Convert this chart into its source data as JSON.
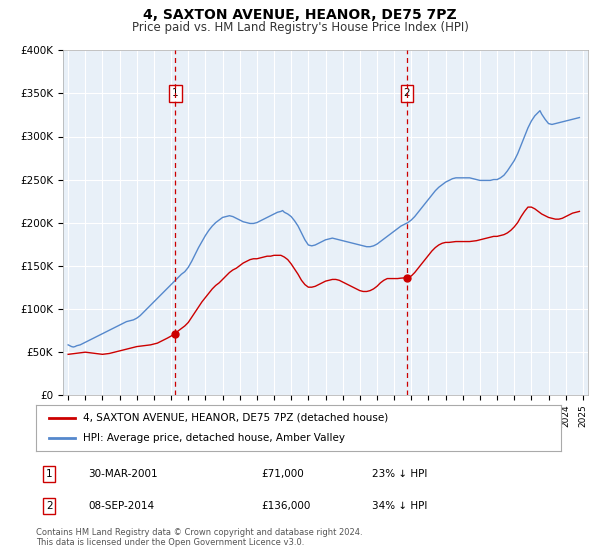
{
  "title": "4, SAXTON AVENUE, HEANOR, DE75 7PZ",
  "subtitle": "Price paid vs. HM Land Registry's House Price Index (HPI)",
  "title_fontsize": 10,
  "subtitle_fontsize": 8.5,
  "ylim": [
    0,
    400000
  ],
  "yticks": [
    0,
    50000,
    100000,
    150000,
    200000,
    250000,
    300000,
    350000,
    400000
  ],
  "ytick_labels": [
    "£0",
    "£50K",
    "£100K",
    "£150K",
    "£200K",
    "£250K",
    "£300K",
    "£350K",
    "£400K"
  ],
  "xlim_start": 1994.7,
  "xlim_end": 2025.3,
  "background_color": "#ffffff",
  "plot_bg": "#e8f0f8",
  "grid_color": "#ffffff",
  "red_line_color": "#cc0000",
  "blue_line_color": "#5588cc",
  "marker1_x": 2001.25,
  "marker2_x": 2014.75,
  "marker1_label": "1",
  "marker2_label": "2",
  "legend_line1": "4, SAXTON AVENUE, HEANOR, DE75 7PZ (detached house)",
  "legend_line2": "HPI: Average price, detached house, Amber Valley",
  "table_row1": [
    "1",
    "30-MAR-2001",
    "£71,000",
    "23% ↓ HPI"
  ],
  "table_row2": [
    "2",
    "08-SEP-2014",
    "£136,000",
    "34% ↓ HPI"
  ],
  "footnote1": "Contains HM Land Registry data © Crown copyright and database right 2024.",
  "footnote2": "This data is licensed under the Open Government Licence v3.0.",
  "hpi_years": [
    1995.0,
    1995.1,
    1995.2,
    1995.3,
    1995.4,
    1995.5,
    1995.6,
    1995.7,
    1995.8,
    1995.9,
    1996.0,
    1996.1,
    1996.2,
    1996.3,
    1996.4,
    1996.5,
    1996.6,
    1996.7,
    1996.8,
    1996.9,
    1997.0,
    1997.2,
    1997.4,
    1997.6,
    1997.8,
    1998.0,
    1998.2,
    1998.4,
    1998.6,
    1998.8,
    1999.0,
    1999.2,
    1999.4,
    1999.6,
    1999.8,
    2000.0,
    2000.2,
    2000.4,
    2000.6,
    2000.8,
    2001.0,
    2001.2,
    2001.4,
    2001.6,
    2001.8,
    2002.0,
    2002.2,
    2002.4,
    2002.6,
    2002.8,
    2003.0,
    2003.2,
    2003.4,
    2003.6,
    2003.8,
    2004.0,
    2004.2,
    2004.4,
    2004.6,
    2004.8,
    2005.0,
    2005.2,
    2005.4,
    2005.6,
    2005.8,
    2006.0,
    2006.2,
    2006.4,
    2006.6,
    2006.8,
    2007.0,
    2007.2,
    2007.4,
    2007.5,
    2007.6,
    2007.8,
    2008.0,
    2008.2,
    2008.4,
    2008.6,
    2008.8,
    2009.0,
    2009.2,
    2009.4,
    2009.6,
    2009.8,
    2010.0,
    2010.2,
    2010.4,
    2010.6,
    2010.8,
    2011.0,
    2011.2,
    2011.4,
    2011.6,
    2011.8,
    2012.0,
    2012.2,
    2012.4,
    2012.6,
    2012.8,
    2013.0,
    2013.2,
    2013.4,
    2013.6,
    2013.8,
    2014.0,
    2014.2,
    2014.4,
    2014.6,
    2014.8,
    2015.0,
    2015.2,
    2015.4,
    2015.6,
    2015.8,
    2016.0,
    2016.2,
    2016.4,
    2016.6,
    2016.8,
    2017.0,
    2017.2,
    2017.4,
    2017.6,
    2017.8,
    2018.0,
    2018.2,
    2018.4,
    2018.6,
    2018.8,
    2019.0,
    2019.2,
    2019.4,
    2019.6,
    2019.8,
    2020.0,
    2020.2,
    2020.4,
    2020.6,
    2020.8,
    2021.0,
    2021.2,
    2021.4,
    2021.6,
    2021.8,
    2022.0,
    2022.2,
    2022.4,
    2022.5,
    2022.6,
    2022.8,
    2023.0,
    2023.2,
    2023.4,
    2023.6,
    2023.8,
    2024.0,
    2024.2,
    2024.4,
    2024.6,
    2024.8
  ],
  "hpi_values": [
    58000,
    57000,
    56000,
    55500,
    56000,
    57000,
    57500,
    58000,
    59000,
    60000,
    61000,
    62000,
    63000,
    64000,
    65000,
    66000,
    67000,
    68000,
    69000,
    70000,
    71000,
    73000,
    75000,
    77000,
    79000,
    81000,
    83000,
    85000,
    86000,
    87000,
    89000,
    92000,
    96000,
    100000,
    104000,
    108000,
    112000,
    116000,
    120000,
    124000,
    128000,
    132000,
    136000,
    140000,
    143000,
    148000,
    155000,
    163000,
    171000,
    178000,
    185000,
    191000,
    196000,
    200000,
    203000,
    206000,
    207000,
    208000,
    207000,
    205000,
    203000,
    201000,
    200000,
    199000,
    199000,
    200000,
    202000,
    204000,
    206000,
    208000,
    210000,
    212000,
    213000,
    214000,
    212000,
    210000,
    207000,
    202000,
    196000,
    188000,
    180000,
    174000,
    173000,
    174000,
    176000,
    178000,
    180000,
    181000,
    182000,
    181000,
    180000,
    179000,
    178000,
    177000,
    176000,
    175000,
    174000,
    173000,
    172000,
    172000,
    173000,
    175000,
    178000,
    181000,
    184000,
    187000,
    190000,
    193000,
    196000,
    198000,
    200000,
    203000,
    207000,
    212000,
    217000,
    222000,
    227000,
    232000,
    237000,
    241000,
    244000,
    247000,
    249000,
    251000,
    252000,
    252000,
    252000,
    252000,
    252000,
    251000,
    250000,
    249000,
    249000,
    249000,
    249000,
    250000,
    250000,
    252000,
    255000,
    260000,
    266000,
    272000,
    280000,
    290000,
    300000,
    310000,
    318000,
    324000,
    328000,
    330000,
    326000,
    320000,
    315000,
    314000,
    315000,
    316000,
    317000,
    318000,
    319000,
    320000,
    321000,
    322000
  ],
  "red_years": [
    1995.0,
    1995.2,
    1995.4,
    1995.6,
    1995.8,
    1996.0,
    1996.2,
    1996.4,
    1996.6,
    1996.8,
    1997.0,
    1997.2,
    1997.4,
    1997.6,
    1997.8,
    1998.0,
    1998.2,
    1998.4,
    1998.6,
    1998.8,
    1999.0,
    1999.2,
    1999.4,
    1999.6,
    1999.8,
    2000.0,
    2000.2,
    2000.4,
    2000.6,
    2000.8,
    2001.25,
    2001.4,
    2001.6,
    2001.8,
    2002.0,
    2002.2,
    2002.4,
    2002.6,
    2002.8,
    2003.0,
    2003.2,
    2003.4,
    2003.6,
    2003.8,
    2004.0,
    2004.2,
    2004.4,
    2004.6,
    2004.8,
    2005.0,
    2005.2,
    2005.4,
    2005.6,
    2005.8,
    2006.0,
    2006.2,
    2006.4,
    2006.6,
    2006.8,
    2007.0,
    2007.2,
    2007.4,
    2007.6,
    2007.8,
    2008.0,
    2008.2,
    2008.4,
    2008.6,
    2008.8,
    2009.0,
    2009.2,
    2009.4,
    2009.6,
    2009.8,
    2010.0,
    2010.2,
    2010.4,
    2010.6,
    2010.8,
    2011.0,
    2011.2,
    2011.4,
    2011.6,
    2011.8,
    2012.0,
    2012.2,
    2012.4,
    2012.6,
    2012.8,
    2013.0,
    2013.2,
    2013.4,
    2013.6,
    2013.8,
    2014.0,
    2014.2,
    2014.4,
    2014.6,
    2014.75,
    2015.0,
    2015.2,
    2015.4,
    2015.6,
    2015.8,
    2016.0,
    2016.2,
    2016.4,
    2016.6,
    2016.8,
    2017.0,
    2017.2,
    2017.4,
    2017.6,
    2017.8,
    2018.0,
    2018.2,
    2018.4,
    2018.6,
    2018.8,
    2019.0,
    2019.2,
    2019.4,
    2019.6,
    2019.8,
    2020.0,
    2020.2,
    2020.4,
    2020.6,
    2020.8,
    2021.0,
    2021.2,
    2021.4,
    2021.6,
    2021.8,
    2022.0,
    2022.2,
    2022.4,
    2022.6,
    2022.8,
    2023.0,
    2023.2,
    2023.4,
    2023.6,
    2023.8,
    2024.0,
    2024.2,
    2024.4,
    2024.6,
    2024.8
  ],
  "red_values": [
    47000,
    47500,
    48000,
    48500,
    49000,
    49500,
    49000,
    48500,
    48000,
    47500,
    47000,
    47500,
    48000,
    49000,
    50000,
    51000,
    52000,
    53000,
    54000,
    55000,
    56000,
    56500,
    57000,
    57500,
    58000,
    59000,
    60000,
    62000,
    64000,
    66000,
    71000,
    74000,
    77000,
    80000,
    84000,
    90000,
    96000,
    102000,
    108000,
    113000,
    118000,
    123000,
    127000,
    130000,
    134000,
    138000,
    142000,
    145000,
    147000,
    150000,
    153000,
    155000,
    157000,
    158000,
    158000,
    159000,
    160000,
    161000,
    161000,
    162000,
    162000,
    162000,
    160000,
    157000,
    152000,
    146000,
    140000,
    133000,
    128000,
    125000,
    125000,
    126000,
    128000,
    130000,
    132000,
    133000,
    134000,
    134000,
    133000,
    131000,
    129000,
    127000,
    125000,
    123000,
    121000,
    120000,
    120000,
    121000,
    123000,
    126000,
    130000,
    133000,
    135000,
    135000,
    135000,
    135000,
    135500,
    135800,
    136000,
    138000,
    142000,
    147000,
    152000,
    157000,
    162000,
    167000,
    171000,
    174000,
    176000,
    177000,
    177000,
    177500,
    178000,
    178000,
    178000,
    178000,
    178000,
    178500,
    179000,
    180000,
    181000,
    182000,
    183000,
    184000,
    184000,
    185000,
    186000,
    188000,
    191000,
    195000,
    200000,
    207000,
    213000,
    218000,
    218000,
    216000,
    213000,
    210000,
    208000,
    206000,
    205000,
    204000,
    204000,
    205000,
    207000,
    209000,
    211000,
    212000,
    213000
  ]
}
